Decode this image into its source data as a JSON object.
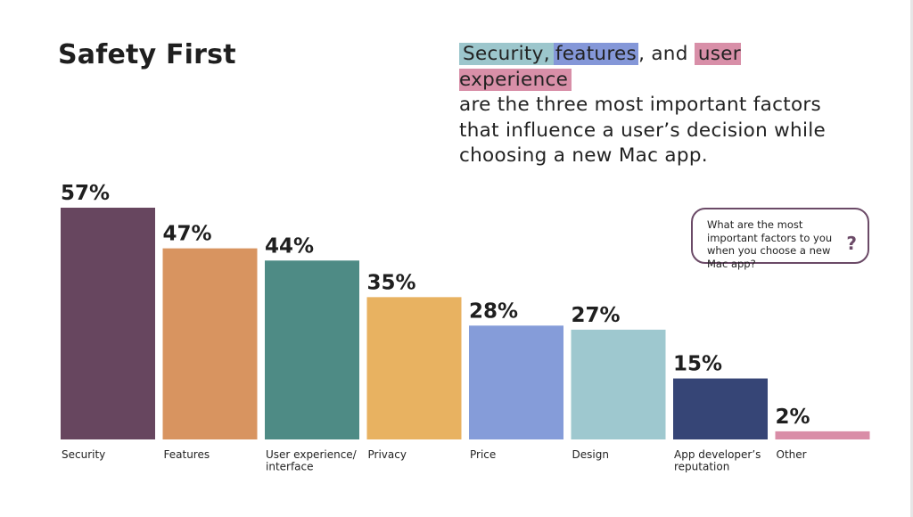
{
  "title": "Safety First",
  "headline": {
    "part1": "Security,",
    "part2": "features",
    "part3": ", and",
    "part4": "user experience",
    "rest": "are the three most important factors that influence a user’s decision while choosing a new Mac app."
  },
  "callout": {
    "text": "What are the most important factors to you when you choose a new Mac app?",
    "icon": "?"
  },
  "colors": {
    "security": "#67465f",
    "features": "#d89460",
    "ux": "#4e8b85",
    "privacy": "#e8b261",
    "price": "#859cd9",
    "design": "#9ec8cf",
    "developer": "#364576",
    "other": "#d98da7"
  },
  "chart_data": {
    "type": "bar",
    "title": "Safety First",
    "xlabel": "",
    "ylabel": "",
    "ylim": [
      0,
      57
    ],
    "categories": [
      [
        "Security"
      ],
      [
        "Features"
      ],
      [
        "User experience/",
        "interface"
      ],
      [
        "Privacy"
      ],
      [
        "Price"
      ],
      [
        "Design"
      ],
      [
        "App developer’s",
        "reputation"
      ],
      [
        "Other"
      ]
    ],
    "values": [
      57,
      47,
      44,
      35,
      28,
      27,
      15,
      2
    ],
    "value_labels": [
      "57%",
      "47%",
      "44%",
      "35%",
      "28%",
      "27%",
      "15%",
      "2%"
    ],
    "bar_colors": [
      "#67465f",
      "#d89460",
      "#4e8b85",
      "#e8b261",
      "#859cd9",
      "#9ec8cf",
      "#364576",
      "#d98da7"
    ]
  }
}
